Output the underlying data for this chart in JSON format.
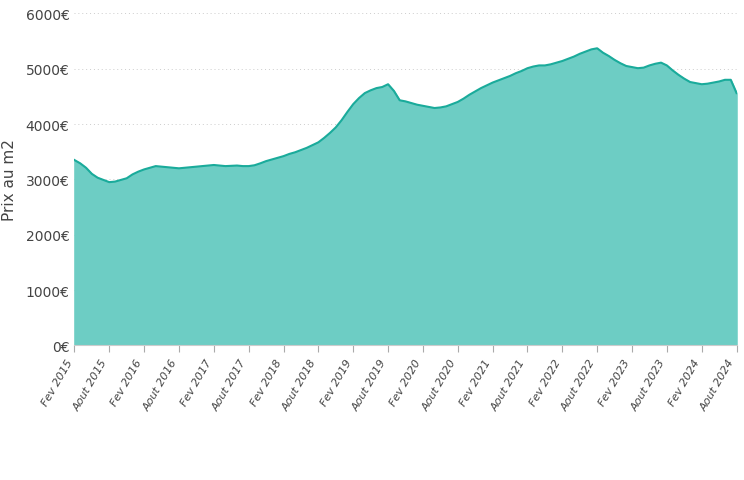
{
  "fill_color": "#6dcdc4",
  "line_color": "#1aab9b",
  "background_color": "#ffffff",
  "ylabel": "Prix au m2",
  "ylim": [
    0,
    6000
  ],
  "yticks": [
    0,
    1000,
    2000,
    3000,
    4000,
    5000,
    6000
  ],
  "ytick_labels": [
    "0€",
    "1000€",
    "2000€",
    "3000€",
    "4000€",
    "5000€",
    "6000€"
  ],
  "grid_color": "#cccccc",
  "spine_color": "#cccccc",
  "tick_label_color": "#444444",
  "monthly_data": [
    [
      2015,
      2,
      3350
    ],
    [
      2015,
      3,
      3290
    ],
    [
      2015,
      4,
      3210
    ],
    [
      2015,
      5,
      3100
    ],
    [
      2015,
      6,
      3030
    ],
    [
      2015,
      7,
      2990
    ],
    [
      2015,
      8,
      2950
    ],
    [
      2015,
      9,
      2960
    ],
    [
      2015,
      10,
      2990
    ],
    [
      2015,
      11,
      3020
    ],
    [
      2015,
      12,
      3090
    ],
    [
      2016,
      1,
      3140
    ],
    [
      2016,
      2,
      3180
    ],
    [
      2016,
      3,
      3210
    ],
    [
      2016,
      4,
      3240
    ],
    [
      2016,
      5,
      3230
    ],
    [
      2016,
      6,
      3220
    ],
    [
      2016,
      7,
      3210
    ],
    [
      2016,
      8,
      3200
    ],
    [
      2016,
      9,
      3210
    ],
    [
      2016,
      10,
      3220
    ],
    [
      2016,
      11,
      3230
    ],
    [
      2016,
      12,
      3240
    ],
    [
      2017,
      1,
      3250
    ],
    [
      2017,
      2,
      3260
    ],
    [
      2017,
      3,
      3250
    ],
    [
      2017,
      4,
      3240
    ],
    [
      2017,
      5,
      3245
    ],
    [
      2017,
      6,
      3250
    ],
    [
      2017,
      7,
      3240
    ],
    [
      2017,
      8,
      3240
    ],
    [
      2017,
      9,
      3255
    ],
    [
      2017,
      10,
      3290
    ],
    [
      2017,
      11,
      3330
    ],
    [
      2017,
      12,
      3360
    ],
    [
      2018,
      1,
      3390
    ],
    [
      2018,
      2,
      3420
    ],
    [
      2018,
      3,
      3460
    ],
    [
      2018,
      4,
      3490
    ],
    [
      2018,
      5,
      3530
    ],
    [
      2018,
      6,
      3570
    ],
    [
      2018,
      7,
      3620
    ],
    [
      2018,
      8,
      3670
    ],
    [
      2018,
      9,
      3750
    ],
    [
      2018,
      10,
      3840
    ],
    [
      2018,
      11,
      3940
    ],
    [
      2018,
      12,
      4070
    ],
    [
      2019,
      1,
      4220
    ],
    [
      2019,
      2,
      4360
    ],
    [
      2019,
      3,
      4470
    ],
    [
      2019,
      4,
      4560
    ],
    [
      2019,
      5,
      4610
    ],
    [
      2019,
      6,
      4650
    ],
    [
      2019,
      7,
      4670
    ],
    [
      2019,
      8,
      4720
    ],
    [
      2019,
      9,
      4600
    ],
    [
      2019,
      10,
      4430
    ],
    [
      2019,
      11,
      4410
    ],
    [
      2019,
      12,
      4380
    ],
    [
      2020,
      1,
      4350
    ],
    [
      2020,
      2,
      4330
    ],
    [
      2020,
      3,
      4310
    ],
    [
      2020,
      4,
      4290
    ],
    [
      2020,
      5,
      4300
    ],
    [
      2020,
      6,
      4320
    ],
    [
      2020,
      7,
      4360
    ],
    [
      2020,
      8,
      4400
    ],
    [
      2020,
      9,
      4460
    ],
    [
      2020,
      10,
      4530
    ],
    [
      2020,
      11,
      4590
    ],
    [
      2020,
      12,
      4650
    ],
    [
      2021,
      1,
      4700
    ],
    [
      2021,
      2,
      4750
    ],
    [
      2021,
      3,
      4790
    ],
    [
      2021,
      4,
      4830
    ],
    [
      2021,
      5,
      4870
    ],
    [
      2021,
      6,
      4920
    ],
    [
      2021,
      7,
      4960
    ],
    [
      2021,
      8,
      5010
    ],
    [
      2021,
      9,
      5040
    ],
    [
      2021,
      10,
      5060
    ],
    [
      2021,
      11,
      5060
    ],
    [
      2021,
      12,
      5080
    ],
    [
      2022,
      1,
      5110
    ],
    [
      2022,
      2,
      5140
    ],
    [
      2022,
      3,
      5180
    ],
    [
      2022,
      4,
      5220
    ],
    [
      2022,
      5,
      5270
    ],
    [
      2022,
      6,
      5310
    ],
    [
      2022,
      7,
      5350
    ],
    [
      2022,
      8,
      5370
    ],
    [
      2022,
      9,
      5290
    ],
    [
      2022,
      10,
      5230
    ],
    [
      2022,
      11,
      5160
    ],
    [
      2022,
      12,
      5100
    ],
    [
      2023,
      1,
      5050
    ],
    [
      2023,
      2,
      5030
    ],
    [
      2023,
      3,
      5010
    ],
    [
      2023,
      4,
      5020
    ],
    [
      2023,
      5,
      5060
    ],
    [
      2023,
      6,
      5090
    ],
    [
      2023,
      7,
      5110
    ],
    [
      2023,
      8,
      5060
    ],
    [
      2023,
      9,
      4970
    ],
    [
      2023,
      10,
      4890
    ],
    [
      2023,
      11,
      4820
    ],
    [
      2023,
      12,
      4760
    ],
    [
      2024,
      1,
      4740
    ],
    [
      2024,
      2,
      4720
    ],
    [
      2024,
      3,
      4730
    ],
    [
      2024,
      4,
      4750
    ],
    [
      2024,
      5,
      4770
    ],
    [
      2024,
      6,
      4800
    ],
    [
      2024,
      7,
      4800
    ],
    [
      2024,
      8,
      4560
    ]
  ],
  "xtick_months": [
    [
      2015,
      2,
      "Fev 2015"
    ],
    [
      2015,
      8,
      "Aout 2015"
    ],
    [
      2016,
      2,
      "Fev 2016"
    ],
    [
      2016,
      8,
      "Aout 2016"
    ],
    [
      2017,
      2,
      "Fev 2017"
    ],
    [
      2017,
      8,
      "Aout 2017"
    ],
    [
      2018,
      2,
      "Fev 2018"
    ],
    [
      2018,
      8,
      "Aout 2018"
    ],
    [
      2019,
      2,
      "Fev 2019"
    ],
    [
      2019,
      8,
      "Aout 2019"
    ],
    [
      2020,
      2,
      "Fev 2020"
    ],
    [
      2020,
      8,
      "Aout 2020"
    ],
    [
      2021,
      2,
      "Fev 2021"
    ],
    [
      2021,
      8,
      "Aout 2021"
    ],
    [
      2022,
      2,
      "Fev 2022"
    ],
    [
      2022,
      8,
      "Aout 2022"
    ],
    [
      2023,
      2,
      "Fev 2023"
    ],
    [
      2023,
      8,
      "Aout 2023"
    ],
    [
      2024,
      2,
      "Fev 2024"
    ],
    [
      2024,
      8,
      "Aout 2024"
    ]
  ],
  "figsize": [
    7.44,
    4.81
  ],
  "dpi": 100,
  "line_width": 1.5,
  "ylabel_fontsize": 11,
  "ytick_fontsize": 10,
  "xtick_fontsize": 8
}
